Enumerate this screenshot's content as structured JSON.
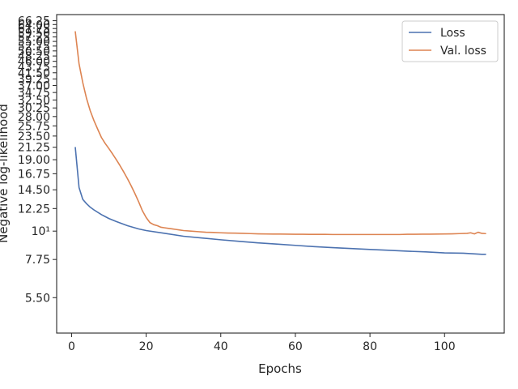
{
  "chart_data": {
    "type": "line",
    "xlabel": "Epochs",
    "ylabel": "Negative log-likelihood",
    "xlim": [
      -4,
      116
    ],
    "xticks": [
      0,
      20,
      40,
      60,
      80,
      100
    ],
    "yscale": "log",
    "ylim": [
      4.0,
      70.0
    ],
    "yticks": [
      {
        "value": 5.5,
        "label": "5.50"
      },
      {
        "value": 7.75,
        "label": "7.75"
      },
      {
        "value": 10,
        "label": "10¹"
      },
      {
        "value": 12.25,
        "label": "12.25"
      },
      {
        "value": 14.5,
        "label": "14.50"
      },
      {
        "value": 16.75,
        "label": "16.75"
      },
      {
        "value": 19.0,
        "label": "19.00"
      },
      {
        "value": 21.25,
        "label": "21.25"
      },
      {
        "value": 23.5,
        "label": "23.50"
      },
      {
        "value": 25.75,
        "label": "25.75"
      },
      {
        "value": 28.0,
        "label": "28.00"
      },
      {
        "value": 30.25,
        "label": "30.25"
      },
      {
        "value": 32.5,
        "label": "32.50"
      },
      {
        "value": 34.75,
        "label": "34.75"
      },
      {
        "value": 37.0,
        "label": "37.00"
      },
      {
        "value": 39.25,
        "label": "39.25"
      },
      {
        "value": 41.5,
        "label": "41.50"
      },
      {
        "value": 43.75,
        "label": "43.75"
      },
      {
        "value": 46.0,
        "label": "46.00"
      },
      {
        "value": 48.25,
        "label": "48.25"
      },
      {
        "value": 50.5,
        "label": "50.50"
      },
      {
        "value": 52.75,
        "label": "52.75"
      },
      {
        "value": 55.0,
        "label": "55.00"
      },
      {
        "value": 57.25,
        "label": "57.25"
      },
      {
        "value": 59.5,
        "label": "59.50"
      },
      {
        "value": 61.75,
        "label": "61.75"
      },
      {
        "value": 64.0,
        "label": "64.00"
      },
      {
        "value": 66.25,
        "label": "66.25"
      }
    ],
    "legend": {
      "position": "top-right"
    },
    "series": [
      {
        "name": "Loss",
        "color": "#4c72b0",
        "x": [
          1,
          2,
          3,
          4,
          5,
          6,
          8,
          10,
          12,
          15,
          18,
          20,
          25,
          30,
          35,
          40,
          45,
          50,
          55,
          60,
          65,
          70,
          75,
          80,
          85,
          90,
          95,
          100,
          105,
          110,
          111
        ],
        "y": [
          21.2,
          14.8,
          13.3,
          12.8,
          12.4,
          12.1,
          11.6,
          11.2,
          10.9,
          10.5,
          10.2,
          10.05,
          9.8,
          9.55,
          9.4,
          9.25,
          9.12,
          9.0,
          8.9,
          8.8,
          8.7,
          8.62,
          8.55,
          8.48,
          8.42,
          8.35,
          8.3,
          8.22,
          8.2,
          8.12,
          8.12
        ]
      },
      {
        "name": "Val. loss",
        "color": "#dd8452",
        "x": [
          1,
          2,
          3,
          4,
          5,
          6,
          7,
          8,
          9,
          10,
          11,
          12,
          13,
          14,
          15,
          16,
          17,
          18,
          19,
          20,
          21,
          22,
          23,
          24,
          25,
          26,
          27,
          28,
          29,
          30,
          32,
          34,
          36,
          38,
          40,
          42,
          44,
          46,
          48,
          50,
          52,
          54,
          56,
          58,
          60,
          62,
          64,
          66,
          68,
          70,
          72,
          74,
          76,
          78,
          80,
          82,
          84,
          86,
          88,
          90,
          92,
          94,
          96,
          98,
          100,
          102,
          104,
          106,
          107,
          108,
          109,
          110,
          111
        ],
        "y": [
          60.0,
          45.0,
          38.0,
          33.0,
          29.5,
          27.0,
          25.0,
          23.2,
          22.0,
          21.0,
          20.0,
          19.0,
          18.0,
          17.0,
          16.0,
          15.0,
          14.0,
          13.0,
          12.0,
          11.3,
          10.8,
          10.6,
          10.5,
          10.35,
          10.3,
          10.25,
          10.2,
          10.15,
          10.1,
          10.05,
          10.0,
          9.95,
          9.9,
          9.88,
          9.85,
          9.83,
          9.82,
          9.8,
          9.78,
          9.76,
          9.75,
          9.74,
          9.74,
          9.73,
          9.72,
          9.72,
          9.71,
          9.71,
          9.71,
          9.7,
          9.7,
          9.7,
          9.7,
          9.7,
          9.7,
          9.7,
          9.7,
          9.7,
          9.7,
          9.72,
          9.72,
          9.73,
          9.73,
          9.74,
          9.75,
          9.76,
          9.78,
          9.8,
          9.85,
          9.75,
          9.9,
          9.8,
          9.78
        ]
      }
    ]
  }
}
